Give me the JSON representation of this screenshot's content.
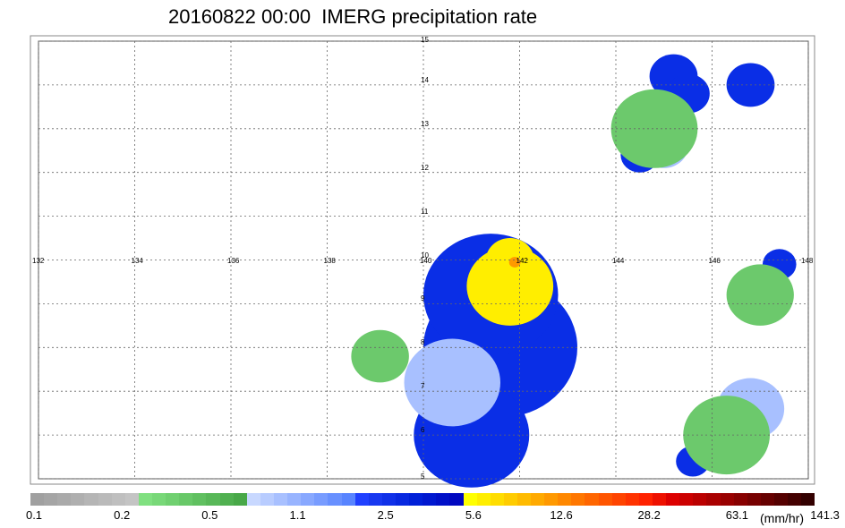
{
  "title": "20160822 00:00  IMERG precipitation rate",
  "map": {
    "lon_range": [
      132,
      148
    ],
    "lat_range": [
      5,
      15
    ],
    "lon_ticks": [
      "132",
      "134",
      "136",
      "138",
      "140",
      "142",
      "144",
      "146",
      "148"
    ],
    "lat_ticks": [
      "5",
      "6",
      "7",
      "8",
      "9",
      "10",
      "11",
      "12",
      "13",
      "14",
      "15"
    ],
    "gridlines": true,
    "cells": [
      {
        "lon": 145.2,
        "lat": 14.2,
        "r": 0.5,
        "level": "blue"
      },
      {
        "lon": 145.5,
        "lat": 13.8,
        "r": 0.45,
        "level": "blue"
      },
      {
        "lon": 146.8,
        "lat": 14.0,
        "r": 0.5,
        "level": "blue"
      },
      {
        "lon": 145.0,
        "lat": 12.6,
        "r": 0.5,
        "level": "lightblue"
      },
      {
        "lon": 144.5,
        "lat": 12.4,
        "r": 0.4,
        "level": "blue"
      },
      {
        "lon": 141.6,
        "lat": 8.0,
        "r": 1.6,
        "level": "blue"
      },
      {
        "lon": 141.4,
        "lat": 9.2,
        "r": 1.4,
        "level": "blue"
      },
      {
        "lon": 141.0,
        "lat": 6.0,
        "r": 1.2,
        "level": "blue"
      },
      {
        "lon": 140.6,
        "lat": 7.2,
        "r": 1.0,
        "level": "lightblue"
      },
      {
        "lon": 141.8,
        "lat": 9.4,
        "r": 0.9,
        "level": "yellow"
      },
      {
        "lon": 141.8,
        "lat": 10.0,
        "r": 0.5,
        "level": "yellow"
      },
      {
        "lon": 141.9,
        "lat": 9.95,
        "r": 0.12,
        "level": "orange"
      },
      {
        "lon": 147.4,
        "lat": 9.9,
        "r": 0.35,
        "level": "blue"
      },
      {
        "lon": 147.0,
        "lat": 9.2,
        "r": 0.7,
        "level": "green"
      },
      {
        "lon": 146.8,
        "lat": 6.6,
        "r": 0.7,
        "level": "lightblue"
      },
      {
        "lon": 145.6,
        "lat": 5.4,
        "r": 0.35,
        "level": "blue"
      },
      {
        "lon": 146.3,
        "lat": 6.0,
        "r": 0.9,
        "level": "green"
      },
      {
        "lon": 139.1,
        "lat": 7.8,
        "r": 0.6,
        "level": "green"
      },
      {
        "lon": 144.8,
        "lat": 13.0,
        "r": 0.9,
        "level": "green"
      }
    ]
  },
  "colorbar": {
    "labels": [
      "0.1",
      "0.2",
      "0.5",
      "1.1",
      "2.5",
      "5.6",
      "12.6",
      "28.2",
      "63.1",
      "141.3"
    ],
    "unit": "(mm/hr)",
    "colors": [
      "#a0a0a0",
      "#a5a5a5",
      "#aaaaaa",
      "#afafaf",
      "#b5b5b5",
      "#bababa",
      "#bfbfbf",
      "#c4c4c4",
      "#80e080",
      "#78d878",
      "#70d070",
      "#68c868",
      "#60c060",
      "#58b858",
      "#50b050",
      "#48a848",
      "#c8d8ff",
      "#b8ccff",
      "#a8c0ff",
      "#98b4ff",
      "#88a8ff",
      "#789cff",
      "#6890ff",
      "#5884ff",
      "#2040ff",
      "#1838f0",
      "#1030e8",
      "#0828e0",
      "#0020d8",
      "#0018d0",
      "#0010c8",
      "#0008c0",
      "#ffff00",
      "#ffee00",
      "#ffdd00",
      "#ffcc00",
      "#ffbb00",
      "#ffaa00",
      "#ff9900",
      "#ff8800",
      "#ff7700",
      "#ff6600",
      "#ff5500",
      "#ff4400",
      "#ff3300",
      "#ff2200",
      "#ee1100",
      "#dd0000",
      "#cc0000",
      "#bb0000",
      "#aa0000",
      "#990000",
      "#880000",
      "#770000",
      "#660000",
      "#550000",
      "#440000",
      "#330000"
    ],
    "level_colors": {
      "green": "#6cc96c",
      "lightblue": "#a8c0ff",
      "blue": "#0a2ee6",
      "yellow": "#ffee00",
      "orange": "#ff9900",
      "gray": "#a8a8a8"
    }
  }
}
